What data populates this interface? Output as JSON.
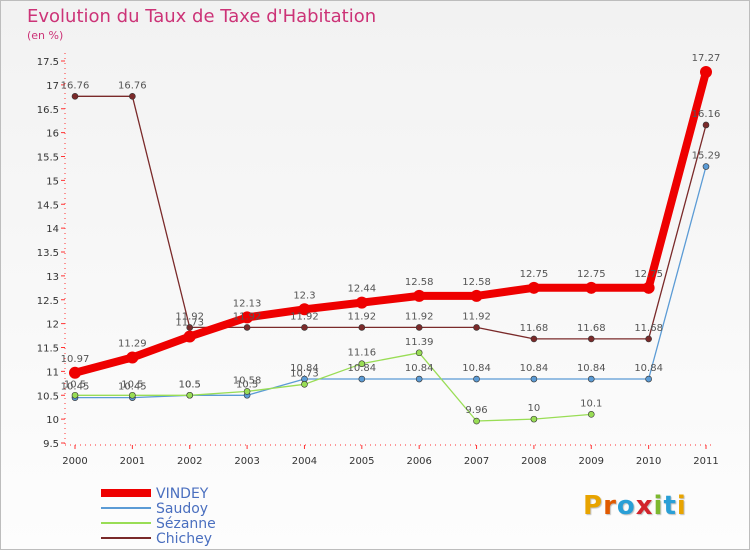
{
  "header": {
    "title": "Evolution du Taux de Taxe d'Habitation",
    "subtitle": "(en %)"
  },
  "logo": {
    "text": "Proxiti",
    "letters": [
      "P",
      "r",
      "o",
      "x",
      "i",
      "t",
      "i"
    ],
    "colors": [
      "#e8a400",
      "#e05a00",
      "#2a9fd6",
      "#d2242c",
      "#7cb82f",
      "#2a9fd6",
      "#e8a400"
    ]
  },
  "chart_data": {
    "type": "line",
    "title": "Evolution du Taux de Taxe d'Habitation",
    "subtitle": "(en %)",
    "xlabel": "",
    "ylabel": "",
    "x": [
      "2000",
      "2001",
      "2002",
      "2003",
      "2004",
      "2005",
      "2006",
      "2007",
      "2008",
      "2009",
      "2010",
      "2011"
    ],
    "yticks": [
      "9.5",
      "10",
      "10.5",
      "11",
      "11.5",
      "12",
      "12.5",
      "13",
      "13.5",
      "14",
      "14.5",
      "15",
      "15.5",
      "16",
      "16.5",
      "17",
      "17.5"
    ],
    "ylim": [
      9.5,
      17.5
    ],
    "grid": false,
    "legend_position": "bottom-left",
    "series": [
      {
        "name": "VINDEY",
        "color": "#ee0000",
        "values": [
          10.97,
          11.29,
          11.73,
          12.13,
          12.3,
          12.44,
          12.58,
          12.58,
          12.75,
          12.75,
          12.75,
          17.27
        ],
        "labels": [
          "10.97",
          "11.29",
          "11.73",
          "12.13",
          "12.3",
          "12.44",
          "12.58",
          "12.58",
          "12.75",
          "12.75",
          "12.75",
          "17.27"
        ]
      },
      {
        "name": "Saudoy",
        "color": "#5b9bd5",
        "values": [
          10.45,
          10.45,
          10.5,
          10.5,
          10.84,
          10.84,
          10.84,
          10.84,
          10.84,
          10.84,
          10.84,
          15.29
        ],
        "labels": [
          "10.45",
          "10.45",
          "10.5",
          "10.5",
          "10.84",
          "10.84",
          "10.84",
          "10.84",
          "10.84",
          "10.84",
          "10.84",
          "15.29"
        ]
      },
      {
        "name": "Sézanne",
        "color": "#99dd55",
        "values": [
          10.5,
          10.5,
          10.5,
          10.58,
          10.73,
          11.16,
          11.39,
          9.96,
          10.0,
          10.1,
          null,
          null
        ],
        "labels": [
          "10.5",
          "10.5",
          "10.5",
          "10.58",
          "10.73",
          "11.16",
          "11.39",
          "9.96",
          "10",
          "10.1",
          "",
          ""
        ]
      },
      {
        "name": "Chichey",
        "color": "#7a2a2a",
        "values": [
          16.76,
          16.76,
          11.92,
          11.92,
          11.92,
          11.92,
          11.92,
          11.92,
          11.68,
          11.68,
          11.68,
          16.16
        ],
        "labels": [
          "16.76",
          "16.76",
          "11.92",
          "11.92",
          "11.92",
          "11.92",
          "11.92",
          "11.92",
          "11.68",
          "11.68",
          "11.68",
          "16.16"
        ]
      }
    ]
  }
}
